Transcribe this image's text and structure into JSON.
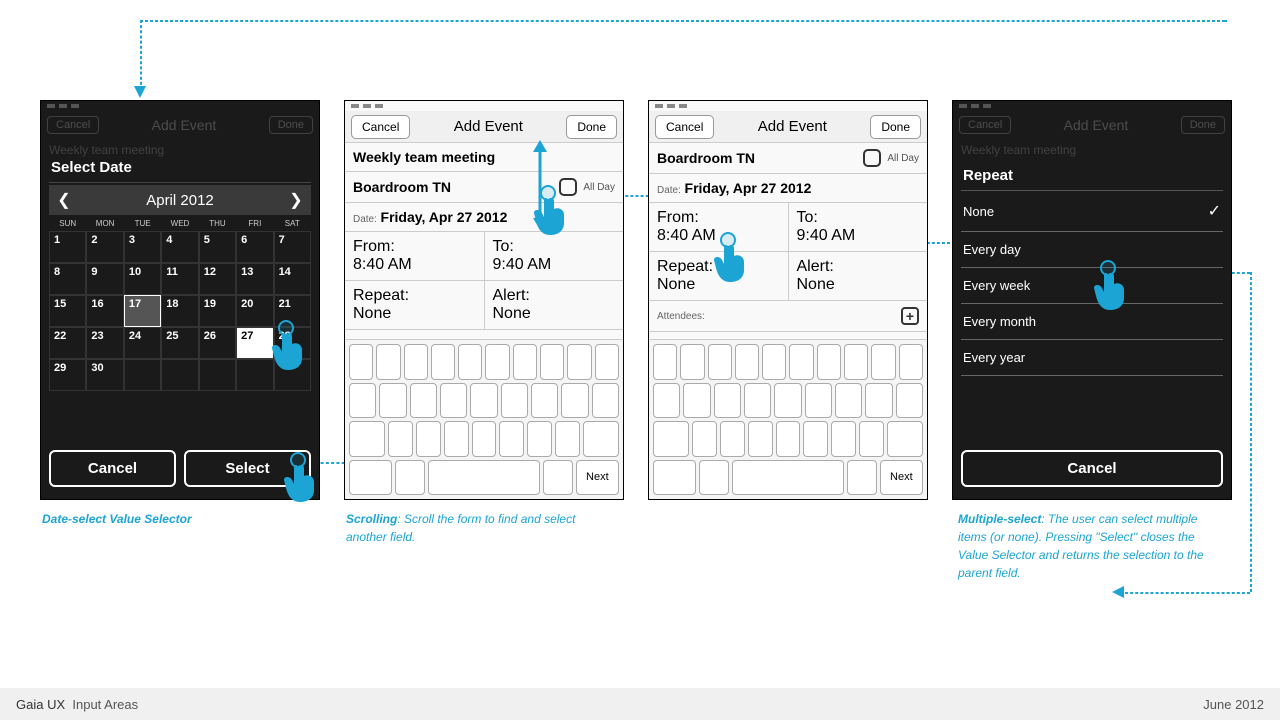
{
  "footer": {
    "left_a": "Gaia UX",
    "left_b": "Input Areas",
    "right": "June 2012"
  },
  "colors": {
    "accent": "#1ca4d4",
    "dashed": "#1ca4d4"
  },
  "captions": {
    "cal": "Date-select Value Selector",
    "scroll_b": "Scrolling",
    "scroll_t": ": Scroll the form to find and select another field.",
    "multi_b": "Multiple-select",
    "multi_t": ": The user can select multiple items (or none). Pressing \"Select\" closes the Value Selector and returns the selection to the parent field."
  },
  "shared": {
    "cancel": "Cancel",
    "done": "Done",
    "add_event": "Add Event",
    "select": "Select",
    "next": "Next",
    "select_date": "Select Date"
  },
  "event": {
    "title": "Weekly team meeting",
    "location": "Boardroom TN",
    "allday": "All Day",
    "date_lbl": "Date:",
    "date": "Friday, Apr 27 2012",
    "from_lbl": "From:",
    "from": "8:40 AM",
    "to_lbl": "To:",
    "to": "9:40 AM",
    "repeat_lbl": "Repeat:",
    "repeat": "None",
    "alert_lbl": "Alert:",
    "alert": "None",
    "att": "Attendees:"
  },
  "cal": {
    "month": "April 2012",
    "days": [
      "SUN",
      "MON",
      "TUE",
      "WED",
      "THU",
      "FRI",
      "SAT"
    ],
    "cells": [
      1,
      2,
      3,
      4,
      5,
      6,
      7,
      8,
      9,
      10,
      11,
      12,
      13,
      14,
      15,
      16,
      17,
      18,
      19,
      20,
      21,
      22,
      23,
      24,
      25,
      26,
      27,
      28,
      29,
      30,
      "",
      "",
      "",
      "",
      ""
    ],
    "selected": 17,
    "highlight": 27
  },
  "repeat": {
    "title": "Repeat",
    "items": [
      "None",
      "Every day",
      "Every week",
      "Every month",
      "Every year"
    ],
    "checked": 0,
    "cancel": "Cancel"
  }
}
